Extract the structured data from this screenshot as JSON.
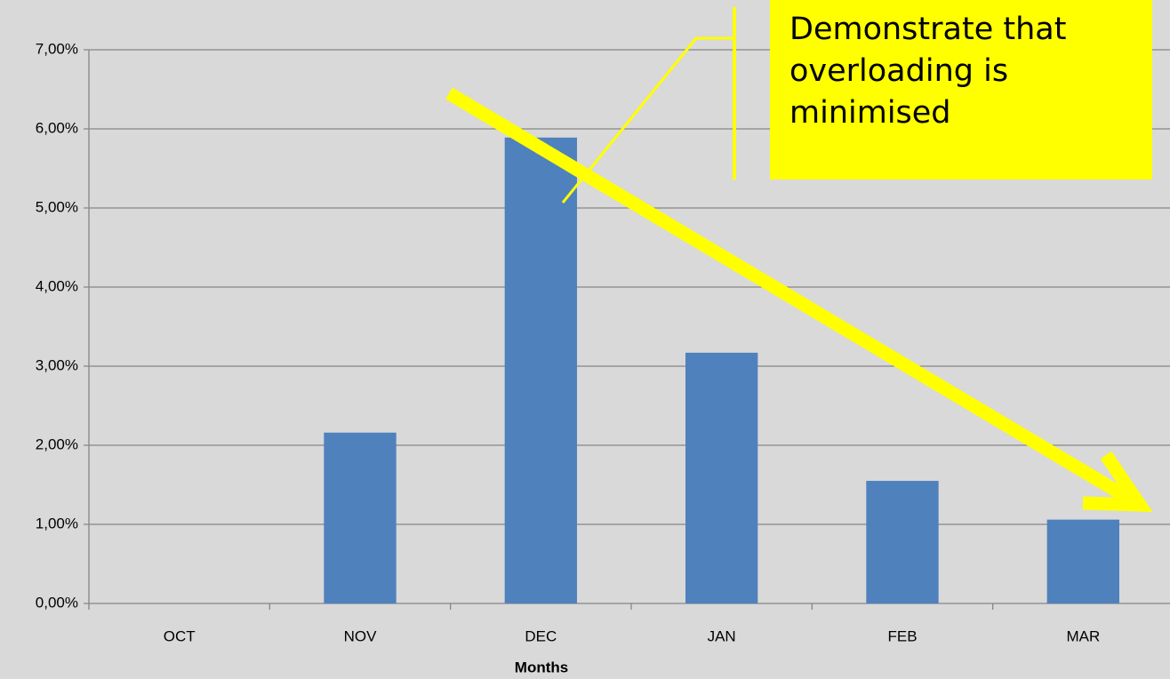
{
  "chart_data": {
    "type": "bar",
    "categories": [
      "OCT",
      "NOV",
      "DEC",
      "JAN",
      "FEB",
      "MAR"
    ],
    "values": [
      0,
      2.16,
      5.89,
      3.17,
      1.55,
      1.06
    ],
    "color": "#4f81bd",
    "ylim": [
      0,
      7
    ],
    "yticks": [
      {
        "value": 0,
        "label": "0,00%"
      },
      {
        "value": 1,
        "label": "1,00%"
      },
      {
        "value": 2,
        "label": "2,00%"
      },
      {
        "value": 3,
        "label": "3,00%"
      },
      {
        "value": 4,
        "label": "4,00%"
      },
      {
        "value": 5,
        "label": "5,00%"
      },
      {
        "value": 6,
        "label": "6,00%"
      },
      {
        "value": 7,
        "label": "7,00%"
      }
    ],
    "grid": true,
    "xlabel": "Months",
    "annotation": "Demonstrate that overloading is minimised"
  }
}
